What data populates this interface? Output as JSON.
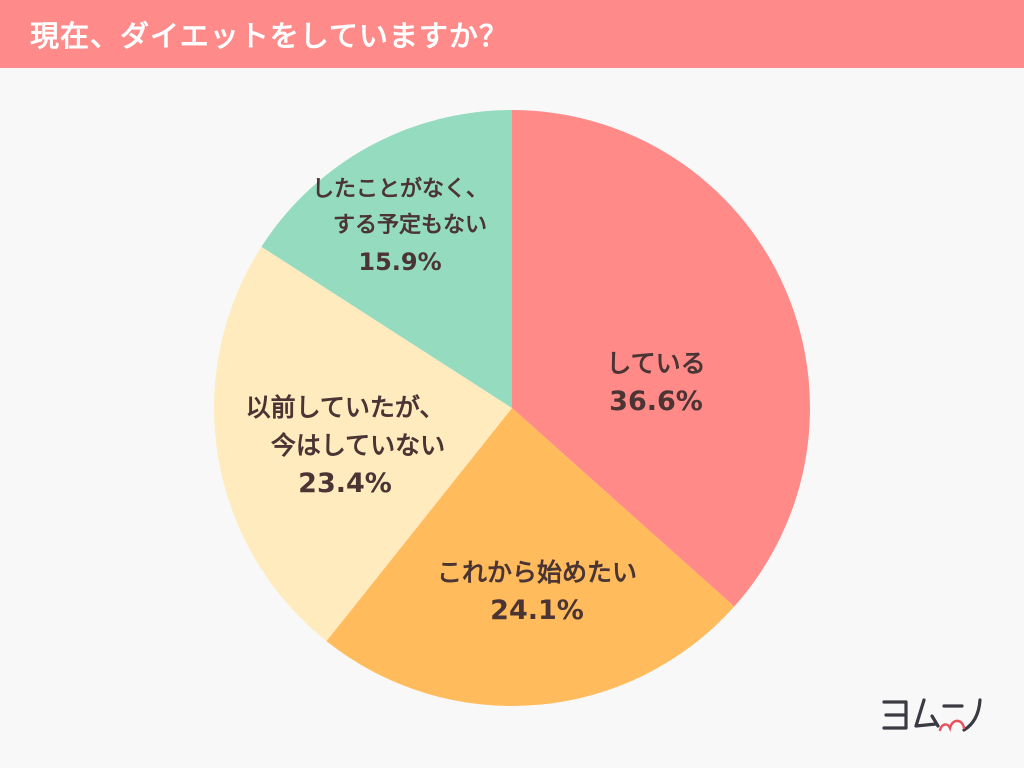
{
  "header": {
    "title": "現在、ダイエットをしていますか？"
  },
  "logo": {
    "text": "ヨムーノ"
  },
  "colors": {
    "header_bg": "#FF8A8A",
    "background": "#F9F8F9",
    "label_text": "#4A3434",
    "logo_text": "#3A3A42",
    "logo_accent": "#E8505B"
  },
  "chart_data": {
    "type": "pie",
    "title": "現在、ダイエットをしていますか？",
    "start_angle_deg": 0,
    "direction": "clockwise",
    "legend": "none (labels inside slices)",
    "slices": [
      {
        "label_lines": [
          "している"
        ],
        "label": "している",
        "value": 36.6,
        "percent_text": "36.6%",
        "color": "#FF8A87"
      },
      {
        "label_lines": [
          "これから始めたい"
        ],
        "label": "これから始めたい",
        "value": 24.1,
        "percent_text": "24.1%",
        "color": "#FFBB5C"
      },
      {
        "label_lines": [
          "以前していたが、",
          "今はしていない"
        ],
        "label": "以前していたが、今はしていない",
        "value": 23.4,
        "percent_text": "23.4%",
        "color": "#FFEBBE"
      },
      {
        "label_lines": [
          "したことがなく、",
          "する予定もない"
        ],
        "label": "したことがなく、する予定もない",
        "value": 15.9,
        "percent_text": "15.9%",
        "color": "#95DBBF"
      }
    ]
  }
}
